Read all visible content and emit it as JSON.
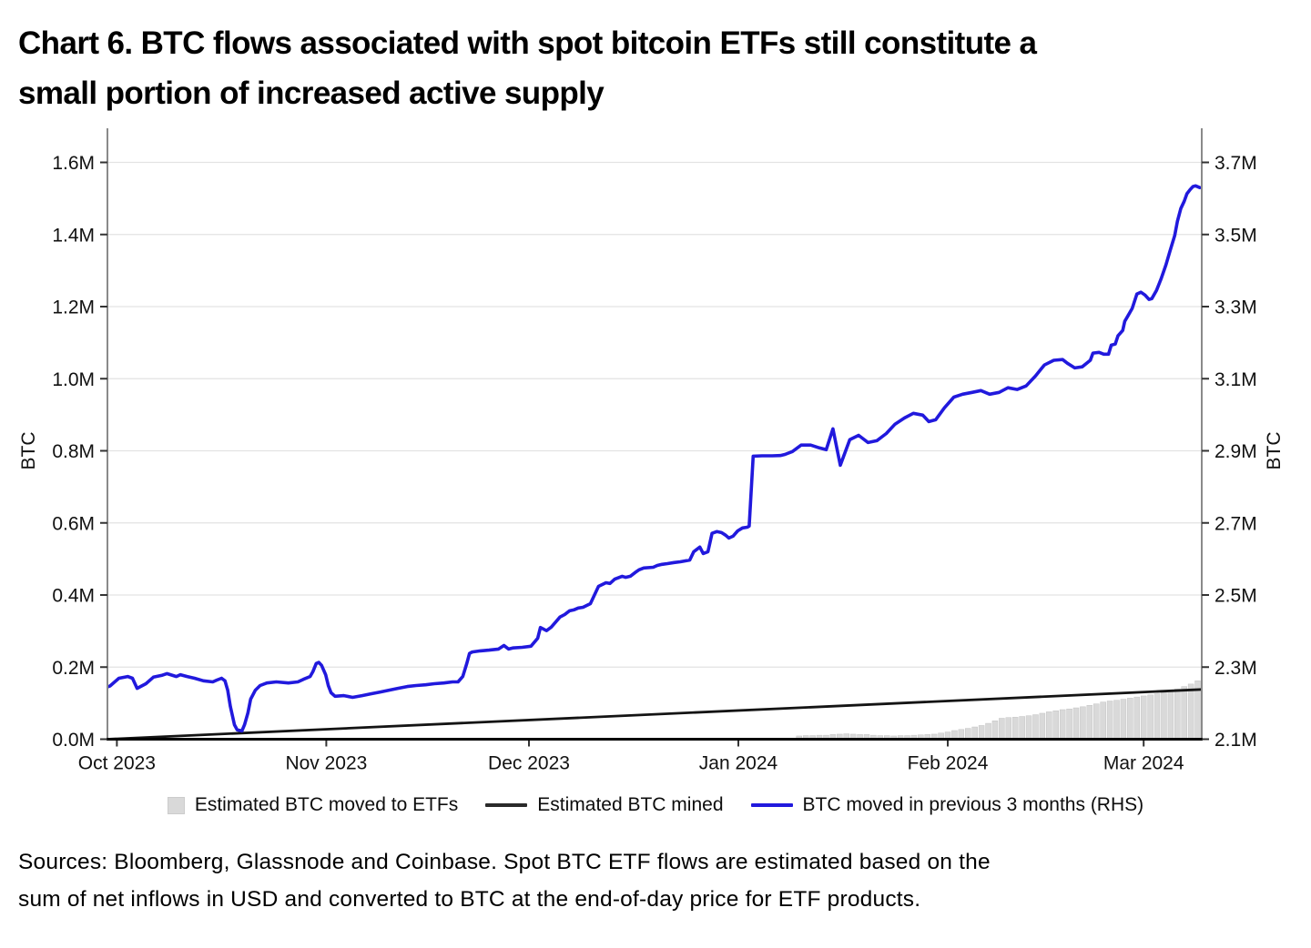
{
  "page": {
    "title_lines": [
      "Chart 6. BTC flows associated with spot bitcoin ETFs still constitute a",
      "small portion of increased active supply"
    ],
    "source_lines": [
      "Sources: Bloomberg, Glassnode and Coinbase. Spot BTC ETF flows are estimated based on the",
      "sum of net inflows in USD and converted to BTC at the end-of-day price for ETF products."
    ]
  },
  "chart_data": {
    "type": "line",
    "title": "Chart 6. BTC flows associated with spot bitcoin ETFs still constitute a small portion of increased active supply",
    "x_axis": {
      "unit": "days since 1 Oct 2023",
      "domain_days": [
        -1.4,
        160.6
      ],
      "tick_days": [
        0,
        31,
        61,
        92,
        123,
        152
      ],
      "tick_labels": [
        "Oct 2023",
        "Nov 2023",
        "Dec 2023",
        "Jan 2024",
        "Feb 2024",
        "Mar 2024"
      ]
    },
    "left_axis": {
      "title": "BTC",
      "min": 0.0,
      "max": 1.6,
      "tick_values": [
        0.0,
        0.2,
        0.4,
        0.6,
        0.8,
        1.0,
        1.2,
        1.4,
        1.6
      ],
      "tick_labels": [
        "0.0M",
        "0.2M",
        "0.4M",
        "0.6M",
        "0.8M",
        "1.0M",
        "1.2M",
        "1.4M",
        "1.6M"
      ]
    },
    "right_axis": {
      "title": "BTC",
      "min": 2.1,
      "max": 3.7,
      "tick_values": [
        2.1,
        2.3,
        2.5,
        2.7,
        2.9,
        3.1,
        3.3,
        3.5,
        3.7
      ],
      "tick_labels": [
        "2.1M",
        "2.3M",
        "2.5M",
        "2.7M",
        "2.9M",
        "3.1M",
        "3.3M",
        "3.5M",
        "3.7M"
      ]
    },
    "grid_color": "#e3e3e3",
    "border_color": "#8a8a8a",
    "axis_line_color": "#000000",
    "series": [
      {
        "name": "Estimated BTC moved to ETFs",
        "kind": "bar",
        "axis": "left",
        "color": "#d9d9d9",
        "edge_color": "#c3c3c3",
        "points": [
          [
            101,
            0.009
          ],
          [
            102,
            0.01
          ],
          [
            103,
            0.01
          ],
          [
            104,
            0.011
          ],
          [
            105,
            0.011
          ],
          [
            106,
            0.013
          ],
          [
            107,
            0.014
          ],
          [
            108,
            0.015
          ],
          [
            109,
            0.014
          ],
          [
            110,
            0.013
          ],
          [
            111,
            0.013
          ],
          [
            112,
            0.011
          ],
          [
            113,
            0.01
          ],
          [
            114,
            0.01
          ],
          [
            115,
            0.009
          ],
          [
            116,
            0.01
          ],
          [
            117,
            0.01
          ],
          [
            118,
            0.011
          ],
          [
            119,
            0.012
          ],
          [
            120,
            0.013
          ],
          [
            121,
            0.014
          ],
          [
            122,
            0.017
          ],
          [
            123,
            0.02
          ],
          [
            124,
            0.024
          ],
          [
            125,
            0.027
          ],
          [
            126,
            0.03
          ],
          [
            127,
            0.034
          ],
          [
            128,
            0.038
          ],
          [
            129,
            0.044
          ],
          [
            130,
            0.051
          ],
          [
            131,
            0.058
          ],
          [
            132,
            0.06
          ],
          [
            133,
            0.061
          ],
          [
            134,
            0.063
          ],
          [
            135,
            0.065
          ],
          [
            136,
            0.068
          ],
          [
            137,
            0.072
          ],
          [
            138,
            0.076
          ],
          [
            139,
            0.079
          ],
          [
            140,
            0.082
          ],
          [
            141,
            0.084
          ],
          [
            142,
            0.087
          ],
          [
            143,
            0.09
          ],
          [
            144,
            0.094
          ],
          [
            145,
            0.098
          ],
          [
            146,
            0.103
          ],
          [
            147,
            0.106
          ],
          [
            148,
            0.108
          ],
          [
            149,
            0.111
          ],
          [
            150,
            0.114
          ],
          [
            151,
            0.117
          ],
          [
            152,
            0.12
          ],
          [
            153,
            0.123
          ],
          [
            154,
            0.126
          ],
          [
            155,
            0.129
          ],
          [
            156,
            0.133
          ],
          [
            157,
            0.139
          ],
          [
            158,
            0.146
          ],
          [
            159,
            0.153
          ],
          [
            160,
            0.162
          ]
        ]
      },
      {
        "name": "Estimated BTC mined",
        "kind": "line",
        "axis": "left",
        "color": "#141414",
        "width": 2.8,
        "points": [
          [
            -1.4,
            0.0
          ],
          [
            160.6,
            0.138
          ]
        ]
      },
      {
        "name": "BTC moved in previous 3 months (RHS)",
        "kind": "line",
        "axis": "right",
        "color": "#2119dd",
        "width": 3.6,
        "points": [
          [
            -1.4,
            2.245
          ],
          [
            -1.0,
            2.248
          ],
          [
            0.3,
            2.269
          ],
          [
            1.6,
            2.274
          ],
          [
            2.3,
            2.269
          ],
          [
            3.0,
            2.241
          ],
          [
            4.3,
            2.254
          ],
          [
            5.4,
            2.272
          ],
          [
            6.6,
            2.277
          ],
          [
            7.4,
            2.282
          ],
          [
            8.8,
            2.274
          ],
          [
            9.4,
            2.279
          ],
          [
            10.4,
            2.274
          ],
          [
            11.5,
            2.269
          ],
          [
            12.8,
            2.262
          ],
          [
            14.2,
            2.259
          ],
          [
            14.8,
            2.264
          ],
          [
            15.5,
            2.269
          ],
          [
            16.0,
            2.262
          ],
          [
            16.4,
            2.236
          ],
          [
            16.8,
            2.191
          ],
          [
            17.4,
            2.14
          ],
          [
            17.8,
            2.126
          ],
          [
            18.5,
            2.123
          ],
          [
            18.9,
            2.14
          ],
          [
            19.4,
            2.173
          ],
          [
            19.8,
            2.211
          ],
          [
            20.5,
            2.236
          ],
          [
            21.2,
            2.249
          ],
          [
            22.2,
            2.256
          ],
          [
            23.6,
            2.259
          ],
          [
            25.4,
            2.256
          ],
          [
            26.8,
            2.259
          ],
          [
            27.6,
            2.266
          ],
          [
            28.6,
            2.274
          ],
          [
            29.0,
            2.287
          ],
          [
            29.5,
            2.31
          ],
          [
            29.9,
            2.313
          ],
          [
            30.3,
            2.305
          ],
          [
            30.9,
            2.279
          ],
          [
            31.3,
            2.249
          ],
          [
            31.7,
            2.229
          ],
          [
            32.3,
            2.219
          ],
          [
            33.6,
            2.221
          ],
          [
            34.9,
            2.216
          ],
          [
            36.3,
            2.221
          ],
          [
            37.6,
            2.226
          ],
          [
            39.0,
            2.231
          ],
          [
            40.3,
            2.236
          ],
          [
            41.6,
            2.241
          ],
          [
            43.0,
            2.246
          ],
          [
            44.3,
            2.249
          ],
          [
            45.7,
            2.251
          ],
          [
            47.0,
            2.254
          ],
          [
            48.4,
            2.256
          ],
          [
            49.7,
            2.259
          ],
          [
            50.5,
            2.259
          ],
          [
            51.2,
            2.274
          ],
          [
            51.8,
            2.31
          ],
          [
            52.2,
            2.338
          ],
          [
            52.6,
            2.342
          ],
          [
            53.8,
            2.345
          ],
          [
            55.1,
            2.347
          ],
          [
            56.5,
            2.35
          ],
          [
            57.3,
            2.36
          ],
          [
            58.0,
            2.35
          ],
          [
            58.6,
            2.353
          ],
          [
            60.0,
            2.355
          ],
          [
            61.3,
            2.358
          ],
          [
            62.3,
            2.38
          ],
          [
            62.7,
            2.41
          ],
          [
            63.6,
            2.401
          ],
          [
            64.3,
            2.411
          ],
          [
            65.0,
            2.426
          ],
          [
            65.6,
            2.439
          ],
          [
            66.3,
            2.446
          ],
          [
            67.0,
            2.456
          ],
          [
            67.7,
            2.459
          ],
          [
            68.3,
            2.464
          ],
          [
            69.0,
            2.466
          ],
          [
            70.1,
            2.476
          ],
          [
            71.3,
            2.524
          ],
          [
            72.4,
            2.534
          ],
          [
            73.0,
            2.532
          ],
          [
            73.7,
            2.544
          ],
          [
            74.8,
            2.552
          ],
          [
            75.3,
            2.549
          ],
          [
            76.0,
            2.552
          ],
          [
            76.7,
            2.562
          ],
          [
            77.3,
            2.57
          ],
          [
            78.0,
            2.575
          ],
          [
            79.4,
            2.577
          ],
          [
            80.0,
            2.582
          ],
          [
            80.7,
            2.585
          ],
          [
            81.5,
            2.587
          ],
          [
            82.5,
            2.59
          ],
          [
            83.4,
            2.592
          ],
          [
            84.8,
            2.597
          ],
          [
            85.4,
            2.62
          ],
          [
            86.3,
            2.633
          ],
          [
            86.8,
            2.615
          ],
          [
            87.5,
            2.62
          ],
          [
            88.1,
            2.671
          ],
          [
            88.8,
            2.676
          ],
          [
            89.5,
            2.673
          ],
          [
            90.1,
            2.666
          ],
          [
            90.6,
            2.658
          ],
          [
            91.2,
            2.663
          ],
          [
            91.9,
            2.678
          ],
          [
            92.6,
            2.686
          ],
          [
            93.3,
            2.688
          ],
          [
            93.6,
            2.691
          ],
          [
            94.2,
            2.885
          ],
          [
            95.5,
            2.886
          ],
          [
            97.0,
            2.886
          ],
          [
            98.2,
            2.887
          ],
          [
            98.9,
            2.89
          ],
          [
            100.0,
            2.898
          ],
          [
            101.3,
            2.916
          ],
          [
            102.7,
            2.916
          ],
          [
            104.0,
            2.908
          ],
          [
            105.0,
            2.903
          ],
          [
            106.0,
            2.961
          ],
          [
            107.1,
            2.86
          ],
          [
            108.5,
            2.931
          ],
          [
            109.8,
            2.943
          ],
          [
            111.2,
            2.923
          ],
          [
            112.5,
            2.928
          ],
          [
            113.9,
            2.948
          ],
          [
            115.2,
            2.974
          ],
          [
            116.6,
            2.991
          ],
          [
            117.9,
            3.004
          ],
          [
            119.3,
            2.999
          ],
          [
            120.2,
            2.981
          ],
          [
            121.2,
            2.986
          ],
          [
            122.5,
            3.019
          ],
          [
            123.9,
            3.049
          ],
          [
            125.2,
            3.057
          ],
          [
            126.6,
            3.062
          ],
          [
            127.9,
            3.067
          ],
          [
            129.2,
            3.057
          ],
          [
            130.6,
            3.062
          ],
          [
            131.9,
            3.075
          ],
          [
            133.3,
            3.07
          ],
          [
            134.6,
            3.08
          ],
          [
            136.0,
            3.108
          ],
          [
            137.3,
            3.138
          ],
          [
            138.7,
            3.151
          ],
          [
            140.0,
            3.153
          ],
          [
            140.7,
            3.143
          ],
          [
            141.8,
            3.13
          ],
          [
            142.9,
            3.133
          ],
          [
            144.1,
            3.151
          ],
          [
            144.5,
            3.171
          ],
          [
            145.4,
            3.173
          ],
          [
            146.1,
            3.168
          ],
          [
            146.8,
            3.168
          ],
          [
            147.2,
            3.193
          ],
          [
            147.8,
            3.196
          ],
          [
            148.2,
            3.219
          ],
          [
            148.9,
            3.234
          ],
          [
            149.2,
            3.259
          ],
          [
            149.6,
            3.272
          ],
          [
            150.3,
            3.295
          ],
          [
            151.0,
            3.335
          ],
          [
            151.6,
            3.34
          ],
          [
            152.2,
            3.332
          ],
          [
            152.8,
            3.32
          ],
          [
            153.2,
            3.322
          ],
          [
            153.9,
            3.345
          ],
          [
            154.6,
            3.378
          ],
          [
            155.3,
            3.416
          ],
          [
            155.9,
            3.454
          ],
          [
            156.6,
            3.497
          ],
          [
            157.0,
            3.537
          ],
          [
            157.5,
            3.572
          ],
          [
            158.0,
            3.592
          ],
          [
            158.4,
            3.613
          ],
          [
            158.9,
            3.625
          ],
          [
            159.3,
            3.633
          ],
          [
            159.7,
            3.635
          ],
          [
            160.3,
            3.63
          ]
        ]
      }
    ],
    "legend": [
      {
        "label": "Estimated BTC moved to ETFs",
        "swatch": "square",
        "color": "#d9d9d9"
      },
      {
        "label": "Estimated BTC mined",
        "swatch": "line",
        "color": "#2a2a2a"
      },
      {
        "label": "BTC moved in previous 3 months (RHS)",
        "swatch": "line",
        "color": "#2119dd"
      }
    ]
  }
}
